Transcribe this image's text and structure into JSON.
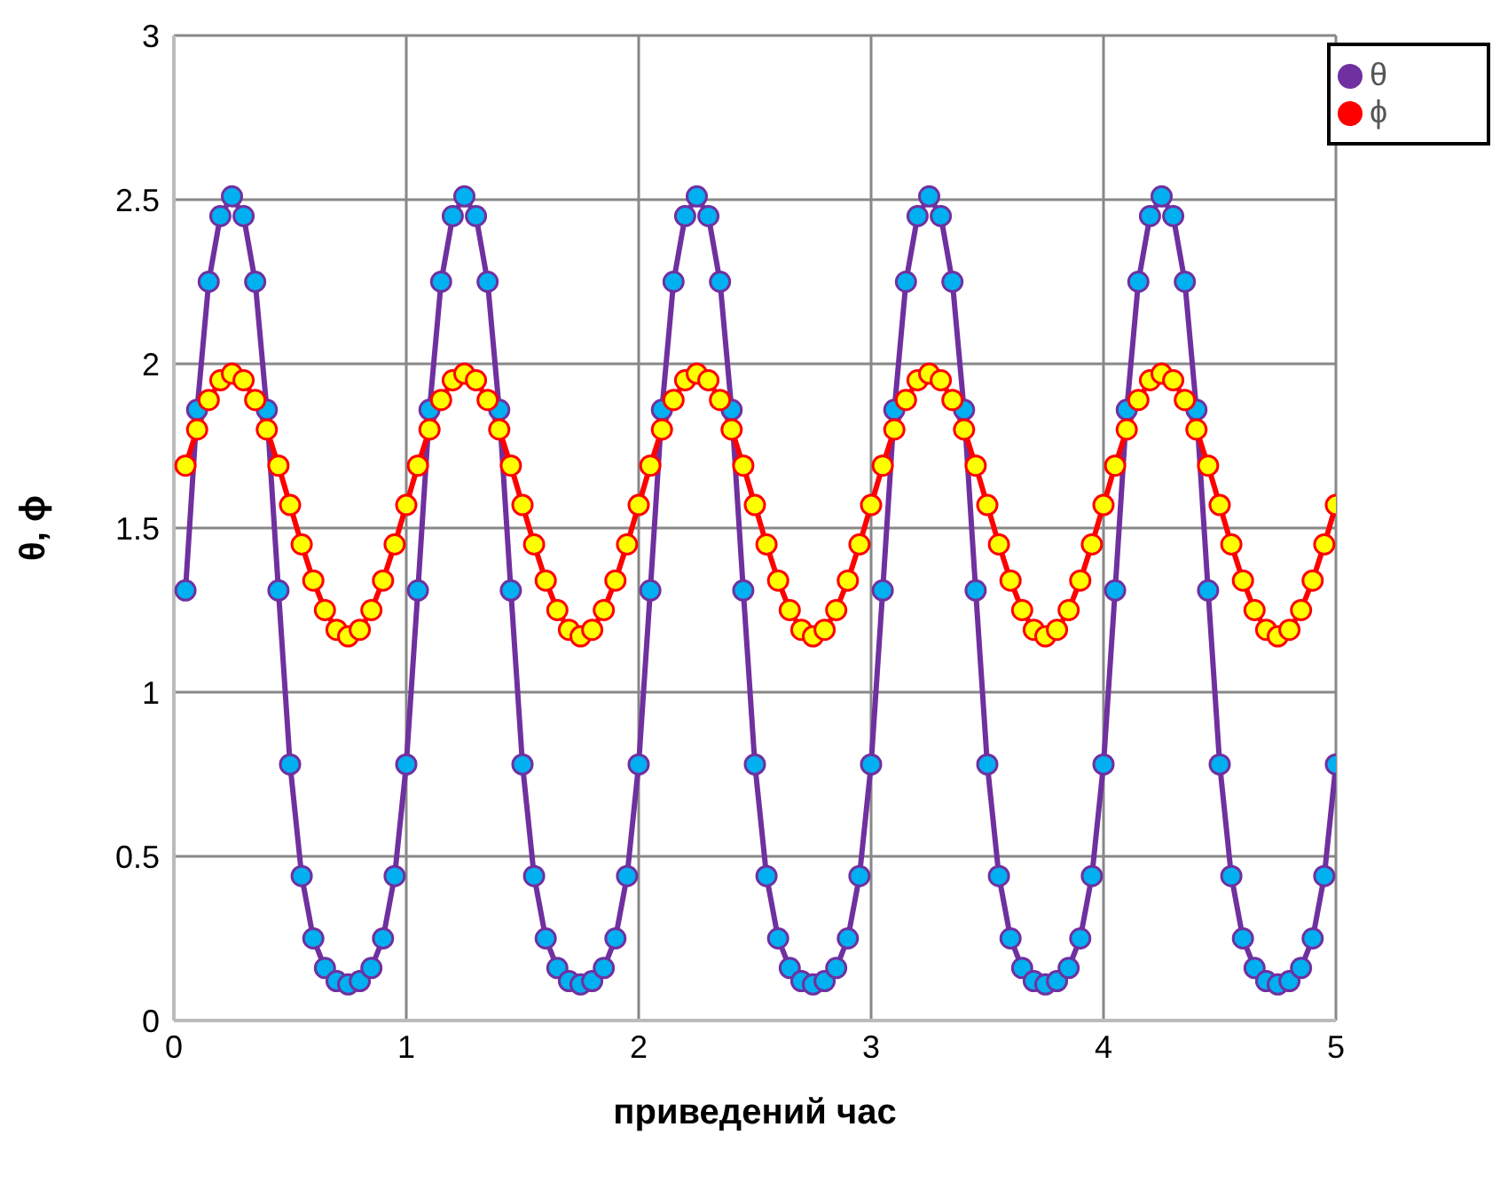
{
  "chart_data": {
    "type": "line",
    "xlabel": "приведений час",
    "ylabel": "θ, ϕ",
    "x": [
      0.05,
      0.1,
      0.15,
      0.2,
      0.25,
      0.3,
      0.35,
      0.4,
      0.45,
      0.5,
      0.55,
      0.6,
      0.65,
      0.7,
      0.75,
      0.8,
      0.85,
      0.9,
      0.95,
      1.0,
      1.05,
      1.1,
      1.15,
      1.2,
      1.25,
      1.3,
      1.35,
      1.4,
      1.45,
      1.5,
      1.55,
      1.6,
      1.65,
      1.7,
      1.75,
      1.8,
      1.85,
      1.9,
      1.95,
      2.0,
      2.05,
      2.1,
      2.15,
      2.2,
      2.25,
      2.3,
      2.35,
      2.4,
      2.45,
      2.5,
      2.55,
      2.6,
      2.65,
      2.7,
      2.75,
      2.8,
      2.85,
      2.9,
      2.95,
      3.0,
      3.05,
      3.1,
      3.15,
      3.2,
      3.25,
      3.3,
      3.35,
      3.4,
      3.45,
      3.5,
      3.55,
      3.6,
      3.65,
      3.7,
      3.75,
      3.8,
      3.85,
      3.9,
      3.95,
      4.0,
      4.05,
      4.1,
      4.15,
      4.2,
      4.25,
      4.3,
      4.35,
      4.4,
      4.45,
      4.5,
      4.55,
      4.6,
      4.65,
      4.7,
      4.75,
      4.8,
      4.85,
      4.9,
      4.95,
      5.0
    ],
    "series": [
      {
        "name": "θ",
        "color": "#7030a0",
        "values": [
          1.31,
          1.86,
          2.25,
          2.45,
          2.51,
          2.45,
          2.25,
          1.86,
          1.31,
          0.78,
          0.44,
          0.25,
          0.16,
          0.12,
          0.11,
          0.12,
          0.16,
          0.25,
          0.44,
          0.78,
          1.31,
          1.86,
          2.25,
          2.45,
          2.51,
          2.45,
          2.25,
          1.86,
          1.31,
          0.78,
          0.44,
          0.25,
          0.16,
          0.12,
          0.11,
          0.12,
          0.16,
          0.25,
          0.44,
          0.78,
          1.31,
          1.86,
          2.25,
          2.45,
          2.51,
          2.45,
          2.25,
          1.86,
          1.31,
          0.78,
          0.44,
          0.25,
          0.16,
          0.12,
          0.11,
          0.12,
          0.16,
          0.25,
          0.44,
          0.78,
          1.31,
          1.86,
          2.25,
          2.45,
          2.51,
          2.45,
          2.25,
          1.86,
          1.31,
          0.78,
          0.44,
          0.25,
          0.16,
          0.12,
          0.11,
          0.12,
          0.16,
          0.25,
          0.44,
          0.78,
          1.31,
          1.86,
          2.25,
          2.45,
          2.51,
          2.45,
          2.25,
          1.86,
          1.31,
          0.78,
          0.44,
          0.25,
          0.16,
          0.12,
          0.11,
          0.12,
          0.16,
          0.25,
          0.44,
          0.78
        ]
      },
      {
        "name": "ϕ",
        "color": "#ff0000",
        "values": [
          1.69,
          1.8,
          1.89,
          1.95,
          1.97,
          1.95,
          1.89,
          1.8,
          1.69,
          1.57,
          1.45,
          1.34,
          1.25,
          1.19,
          1.17,
          1.19,
          1.25,
          1.34,
          1.45,
          1.57,
          1.69,
          1.8,
          1.89,
          1.95,
          1.97,
          1.95,
          1.89,
          1.8,
          1.69,
          1.57,
          1.45,
          1.34,
          1.25,
          1.19,
          1.17,
          1.19,
          1.25,
          1.34,
          1.45,
          1.57,
          1.69,
          1.8,
          1.89,
          1.95,
          1.97,
          1.95,
          1.89,
          1.8,
          1.69,
          1.57,
          1.45,
          1.34,
          1.25,
          1.19,
          1.17,
          1.19,
          1.25,
          1.34,
          1.45,
          1.57,
          1.69,
          1.8,
          1.89,
          1.95,
          1.97,
          1.95,
          1.89,
          1.8,
          1.69,
          1.57,
          1.45,
          1.34,
          1.25,
          1.19,
          1.17,
          1.19,
          1.25,
          1.34,
          1.45,
          1.57,
          1.69,
          1.8,
          1.89,
          1.95,
          1.97,
          1.95,
          1.89,
          1.8,
          1.69,
          1.57,
          1.45,
          1.34,
          1.25,
          1.19,
          1.17,
          1.19,
          1.25,
          1.34,
          1.45,
          1.57
        ]
      }
    ],
    "xlim": [
      0,
      5
    ],
    "xticks": [
      0,
      1,
      2,
      3,
      4,
      5
    ],
    "ylim": [
      0,
      3
    ],
    "yticks": [
      0,
      0.5,
      1,
      1.5,
      2,
      2.5,
      3
    ],
    "grid": true,
    "legend": "top right",
    "marker": "circle",
    "line_style": "solid"
  }
}
